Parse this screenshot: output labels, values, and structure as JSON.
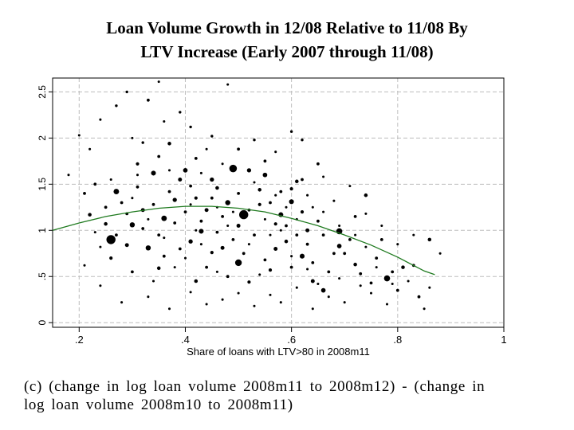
{
  "title": {
    "line1": "Loan Volume Growth in 12/08 Relative to 11/08 By",
    "line2": "LTV Increase (Early 2007 through 11/08)"
  },
  "caption": {
    "line1": "(c) (change in log loan volume 2008m11 to 2008m12) - (change in",
    "line2": "log loan volume 2008m10 to 2008m11)"
  },
  "chart_data": {
    "type": "scatter",
    "xlabel": "Share of loans with LTV>80 in 2008m11",
    "ylabel": "",
    "xlim": [
      0.15,
      1.0
    ],
    "ylim": [
      -0.05,
      2.65
    ],
    "xticks": [
      0.2,
      0.4,
      0.6,
      0.8,
      1
    ],
    "xtick_labels": [
      ".2",
      ".4",
      ".6",
      ".8",
      "1"
    ],
    "yticks": [
      0,
      0.5,
      1,
      1.5,
      2,
      2.5
    ],
    "ytick_labels": [
      "0",
      ".5",
      "1",
      "1.5",
      "2",
      "2.5"
    ],
    "grid": true,
    "marker_color": "#000000",
    "fit_color": "#1f7a1f",
    "points": [
      [
        0.26,
        0.9,
        3
      ],
      [
        0.51,
        1.17,
        3
      ],
      [
        0.49,
        1.67,
        2.5
      ],
      [
        0.5,
        0.65,
        2.2
      ],
      [
        0.78,
        0.48,
        2
      ],
      [
        0.69,
        0.99,
        2
      ],
      [
        0.27,
        1.42,
        1.8
      ],
      [
        0.3,
        1.06,
        1.7
      ],
      [
        0.33,
        0.81,
        1.7
      ],
      [
        0.36,
        1.13,
        1.8
      ],
      [
        0.34,
        1.62,
        1.6
      ],
      [
        0.48,
        1.3,
        1.7
      ],
      [
        0.43,
        0.99,
        1.6
      ],
      [
        0.58,
        1.17,
        1.6
      ],
      [
        0.6,
        1.31,
        1.6
      ],
      [
        0.62,
        0.72,
        1.6
      ],
      [
        0.66,
        0.35,
        1.5
      ],
      [
        0.69,
        0.83,
        1.5
      ],
      [
        0.55,
        1.6,
        1.5
      ],
      [
        0.52,
        1.65,
        1.4
      ],
      [
        0.4,
        1.65,
        1.5
      ],
      [
        0.45,
        1.55,
        1.4
      ],
      [
        0.38,
        1.33,
        1.4
      ],
      [
        0.41,
        0.88,
        1.4
      ],
      [
        0.57,
        0.8,
        1.3
      ],
      [
        0.64,
        0.45,
        1.3
      ],
      [
        0.63,
        1.0,
        1.3
      ],
      [
        0.44,
        1.22,
        1.3
      ],
      [
        0.32,
        1.22,
        1.3
      ],
      [
        0.29,
        0.84,
        1.3
      ],
      [
        0.39,
        1.55,
        1.3
      ],
      [
        0.5,
        1.05,
        1.3
      ],
      [
        0.47,
        0.81,
        1.3
      ],
      [
        0.35,
        0.59,
        1.2
      ],
      [
        0.25,
        1.07,
        1.2
      ],
      [
        0.22,
        1.17,
        1.2
      ],
      [
        0.42,
        0.45,
        1.2
      ],
      [
        0.46,
        1.46,
        1.2
      ],
      [
        0.54,
        1.44,
        1.2
      ],
      [
        0.61,
        1.53,
        1.2
      ],
      [
        0.72,
        0.63,
        1.2
      ],
      [
        0.86,
        0.9,
        1.2
      ],
      [
        0.81,
        0.6,
        1.2
      ],
      [
        0.74,
        1.38,
        1.2
      ],
      [
        0.37,
        1.94,
        1.2
      ],
      [
        0.59,
        0.88,
        1.2
      ],
      [
        0.33,
        2.41,
        1.0
      ],
      [
        0.62,
        1.2,
        1.1
      ],
      [
        0.45,
        0.76,
        1.1
      ],
      [
        0.52,
        0.44,
        1.1
      ],
      [
        0.54,
        1.28,
        1.1
      ],
      [
        0.31,
        1.72,
        1.1
      ],
      [
        0.42,
        1.35,
        1.1
      ],
      [
        0.57,
        1.07,
        1.1
      ],
      [
        0.26,
        0.7,
        1.1
      ],
      [
        0.56,
        0.57,
        1.1
      ],
      [
        0.6,
        1.45,
        1.1
      ],
      [
        0.64,
        0.65,
        1.0
      ],
      [
        0.66,
        0.95,
        1.0
      ],
      [
        0.7,
        0.75,
        1.0
      ],
      [
        0.73,
        0.53,
        1.0
      ],
      [
        0.75,
        0.43,
        1.0
      ],
      [
        0.77,
        0.9,
        1.0
      ],
      [
        0.79,
        0.55,
        1.0
      ],
      [
        0.8,
        0.35,
        1.0
      ],
      [
        0.83,
        0.62,
        1.0
      ],
      [
        0.84,
        0.28,
        1.0
      ],
      [
        0.21,
        1.4,
        1.0
      ],
      [
        0.23,
        1.5,
        1.0
      ],
      [
        0.28,
        1.3,
        1.0
      ],
      [
        0.29,
        1.18,
        1.0
      ],
      [
        0.31,
        1.47,
        1.0
      ],
      [
        0.32,
        1.02,
        1.0
      ],
      [
        0.34,
        1.28,
        1.0
      ],
      [
        0.35,
        0.95,
        1.0
      ],
      [
        0.36,
        0.72,
        1.0
      ],
      [
        0.37,
        1.42,
        1.0
      ],
      [
        0.38,
        1.08,
        1.0
      ],
      [
        0.39,
        0.8,
        1.0
      ],
      [
        0.4,
        1.2,
        1.0
      ],
      [
        0.41,
        1.48,
        1.0
      ],
      [
        0.43,
        1.1,
        1.0
      ],
      [
        0.44,
        0.6,
        1.0
      ],
      [
        0.45,
        1.35,
        1.0
      ],
      [
        0.46,
        0.98,
        1.0
      ],
      [
        0.47,
        1.15,
        1.0
      ],
      [
        0.48,
        0.5,
        1.0
      ],
      [
        0.49,
        0.9,
        1.0
      ],
      [
        0.5,
        1.4,
        1.0
      ],
      [
        0.51,
        0.75,
        1.0
      ],
      [
        0.52,
        1.22,
        1.0
      ],
      [
        0.53,
        0.95,
        1.0
      ],
      [
        0.55,
        0.68,
        1.0
      ],
      [
        0.56,
        1.3,
        1.0
      ],
      [
        0.58,
        1.42,
        1.0
      ],
      [
        0.59,
        1.05,
        1.0
      ],
      [
        0.6,
        0.6,
        1.0
      ],
      [
        0.61,
        0.95,
        1.0
      ],
      [
        0.62,
        1.55,
        1.0
      ],
      [
        0.63,
        0.85,
        1.0
      ],
      [
        0.65,
        1.1,
        1.0
      ],
      [
        0.67,
        0.55,
        1.0
      ],
      [
        0.68,
        0.75,
        1.0
      ],
      [
        0.71,
        0.9,
        1.0
      ],
      [
        0.72,
        1.15,
        1.0
      ],
      [
        0.76,
        0.7,
        1.0
      ],
      [
        0.3,
        0.55,
        1.0
      ],
      [
        0.27,
        0.95,
        1.0
      ],
      [
        0.25,
        1.25,
        1.0
      ],
      [
        0.35,
        1.8,
        1.0
      ],
      [
        0.42,
        1.78,
        1.0
      ],
      [
        0.5,
        1.88,
        1.0
      ],
      [
        0.55,
        1.75,
        1.0
      ],
      [
        0.65,
        1.72,
        1.0
      ],
      [
        0.39,
        2.28,
        0.9
      ],
      [
        0.29,
        2.5,
        0.9
      ],
      [
        0.35,
        2.61,
        0.8
      ],
      [
        0.27,
        2.35,
        0.9
      ],
      [
        0.32,
        1.95,
        0.9
      ],
      [
        0.41,
        2.12,
        0.9
      ],
      [
        0.48,
        2.58,
        0.8
      ],
      [
        0.6,
        2.07,
        0.9
      ],
      [
        0.62,
        1.98,
        0.9
      ],
      [
        0.45,
        2.02,
        0.9
      ],
      [
        0.53,
        1.98,
        0.9
      ],
      [
        0.36,
        2.18,
        0.8
      ],
      [
        0.22,
        1.88,
        0.8
      ],
      [
        0.2,
        2.03,
        0.8
      ],
      [
        0.18,
        1.6,
        0.8
      ],
      [
        0.24,
        2.2,
        0.8
      ],
      [
        0.3,
        2.0,
        0.8
      ],
      [
        0.44,
        1.88,
        0.8
      ],
      [
        0.57,
        1.85,
        0.8
      ],
      [
        0.23,
        0.98,
        0.8
      ],
      [
        0.24,
        0.82,
        0.8
      ],
      [
        0.21,
        0.62,
        0.8
      ],
      [
        0.24,
        0.4,
        0.8
      ],
      [
        0.28,
        0.22,
        0.8
      ],
      [
        0.33,
        0.28,
        0.8
      ],
      [
        0.37,
        0.15,
        0.8
      ],
      [
        0.41,
        0.33,
        0.8
      ],
      [
        0.44,
        0.2,
        0.8
      ],
      [
        0.47,
        0.25,
        0.8
      ],
      [
        0.5,
        0.32,
        0.8
      ],
      [
        0.53,
        0.18,
        0.8
      ],
      [
        0.56,
        0.3,
        0.8
      ],
      [
        0.58,
        0.22,
        0.8
      ],
      [
        0.61,
        0.38,
        0.8
      ],
      [
        0.64,
        0.15,
        0.8
      ],
      [
        0.67,
        0.28,
        0.8
      ],
      [
        0.7,
        0.22,
        0.8
      ],
      [
        0.73,
        0.4,
        0.8
      ],
      [
        0.75,
        0.32,
        0.8
      ],
      [
        0.78,
        0.2,
        0.8
      ],
      [
        0.82,
        0.45,
        0.8
      ],
      [
        0.85,
        0.15,
        0.8
      ],
      [
        0.86,
        0.38,
        0.8
      ],
      [
        0.88,
        0.75,
        0.8
      ],
      [
        0.77,
        1.05,
        0.8
      ],
      [
        0.74,
        1.18,
        0.8
      ],
      [
        0.8,
        0.85,
        0.8
      ],
      [
        0.83,
        0.95,
        0.8
      ],
      [
        0.71,
        1.48,
        0.8
      ],
      [
        0.68,
        1.32,
        0.8
      ],
      [
        0.66,
        1.58,
        0.8
      ],
      [
        0.64,
        1.25,
        0.8
      ],
      [
        0.34,
        0.45,
        0.8
      ],
      [
        0.38,
        0.6,
        0.8
      ],
      [
        0.46,
        0.55,
        0.8
      ],
      [
        0.54,
        0.52,
        0.8
      ],
      [
        0.6,
        0.72,
        0.8
      ],
      [
        0.63,
        0.58,
        0.8
      ],
      [
        0.65,
        0.42,
        0.8
      ],
      [
        0.69,
        0.48,
        0.8
      ],
      [
        0.4,
        0.7,
        0.8
      ],
      [
        0.43,
        0.85,
        0.8
      ],
      [
        0.52,
        0.85,
        0.8
      ],
      [
        0.56,
        0.95,
        0.8
      ],
      [
        0.48,
        1.05,
        0.8
      ],
      [
        0.42,
        1.0,
        0.8
      ],
      [
        0.36,
        0.92,
        0.8
      ],
      [
        0.33,
        1.12,
        0.8
      ],
      [
        0.3,
        1.35,
        0.8
      ],
      [
        0.26,
        1.55,
        0.8
      ],
      [
        0.31,
        1.6,
        0.8
      ],
      [
        0.37,
        1.65,
        0.8
      ],
      [
        0.43,
        1.62,
        0.8
      ],
      [
        0.47,
        1.72,
        0.8
      ],
      [
        0.53,
        1.52,
        0.8
      ],
      [
        0.57,
        1.38,
        0.8
      ],
      [
        0.59,
        1.25,
        0.8
      ],
      [
        0.41,
        1.28,
        0.8
      ],
      [
        0.46,
        1.25,
        0.8
      ],
      [
        0.49,
        1.2,
        0.8
      ],
      [
        0.55,
        1.12,
        0.8
      ],
      [
        0.58,
        1.0,
        0.8
      ],
      [
        0.61,
        1.12,
        0.8
      ],
      [
        0.63,
        1.38,
        0.8
      ],
      [
        0.66,
        1.2,
        0.8
      ],
      [
        0.69,
        1.05,
        0.8
      ],
      [
        0.72,
        0.95,
        0.8
      ],
      [
        0.74,
        0.82,
        0.8
      ],
      [
        0.76,
        0.6,
        0.8
      ],
      [
        0.79,
        0.42,
        0.8
      ]
    ],
    "fit": [
      [
        0.15,
        1.0
      ],
      [
        0.2,
        1.08
      ],
      [
        0.25,
        1.15
      ],
      [
        0.3,
        1.2
      ],
      [
        0.35,
        1.24
      ],
      [
        0.4,
        1.26
      ],
      [
        0.45,
        1.26
      ],
      [
        0.5,
        1.24
      ],
      [
        0.55,
        1.2
      ],
      [
        0.6,
        1.13
      ],
      [
        0.65,
        1.05
      ],
      [
        0.7,
        0.95
      ],
      [
        0.75,
        0.84
      ],
      [
        0.8,
        0.71
      ],
      [
        0.85,
        0.56
      ],
      [
        0.87,
        0.52
      ]
    ]
  }
}
